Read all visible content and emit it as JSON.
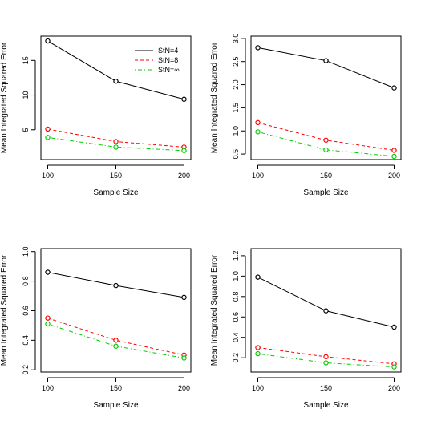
{
  "chart_data": [
    {
      "type": "line",
      "title": "",
      "xlabel": "Sample Size",
      "ylabel": "Mean Integrated Squared Error",
      "x": [
        100,
        150,
        200
      ],
      "xticks": [
        "100",
        "150",
        "200"
      ],
      "xlim": [
        95,
        205
      ],
      "ylim": [
        0.7,
        18.5
      ],
      "yticks": [
        5,
        10,
        15
      ],
      "ytick_labels": [
        "5",
        "10",
        "15"
      ],
      "legend": {
        "position": "top-right",
        "show": true
      },
      "series": [
        {
          "name": "StN=4",
          "values": [
            17.8,
            12.0,
            9.4
          ],
          "color": "#000000",
          "dash": "solid"
        },
        {
          "name": "StN=8",
          "values": [
            5.1,
            3.3,
            2.5
          ],
          "color": "#ff0000",
          "dash": "dashed"
        },
        {
          "name": "StN=∞",
          "values": [
            3.9,
            2.5,
            2.0
          ],
          "color": "#00cd00",
          "dash": "dotdash"
        }
      ]
    },
    {
      "type": "line",
      "title": "",
      "xlabel": "Sample Size",
      "ylabel": "Mean Integrated Squared Error",
      "x": [
        100,
        150,
        200
      ],
      "xticks": [
        "100",
        "150",
        "200"
      ],
      "xlim": [
        95,
        205
      ],
      "ylim": [
        0.38,
        3.05
      ],
      "yticks": [
        0.5,
        1.0,
        1.5,
        2.0,
        2.5,
        3.0
      ],
      "ytick_labels": [
        "0.5",
        "1.0",
        "1.5",
        "2.0",
        "2.5",
        "3.0"
      ],
      "legend": {
        "show": false
      },
      "series": [
        {
          "name": "StN=4",
          "values": [
            2.8,
            2.52,
            1.93
          ],
          "color": "#000000",
          "dash": "solid"
        },
        {
          "name": "StN=8",
          "values": [
            1.18,
            0.8,
            0.58
          ],
          "color": "#ff0000",
          "dash": "dashed"
        },
        {
          "name": "StN=∞",
          "values": [
            0.98,
            0.59,
            0.45
          ],
          "color": "#00cd00",
          "dash": "dotdash"
        }
      ]
    },
    {
      "type": "line",
      "title": "",
      "xlabel": "Sample Size",
      "ylabel": "Mean Integrated Squared Error",
      "x": [
        100,
        150,
        200
      ],
      "xticks": [
        "100",
        "150",
        "200"
      ],
      "xlim": [
        95,
        205
      ],
      "ylim": [
        0.185,
        1.02
      ],
      "yticks": [
        0.2,
        0.4,
        0.6,
        0.8,
        1.0
      ],
      "ytick_labels": [
        "0.2",
        "0.4",
        "0.6",
        "0.8",
        "1.0"
      ],
      "legend": {
        "show": false
      },
      "series": [
        {
          "name": "StN=4",
          "values": [
            0.86,
            0.77,
            0.69
          ],
          "color": "#000000",
          "dash": "solid"
        },
        {
          "name": "StN=8",
          "values": [
            0.55,
            0.4,
            0.3
          ],
          "color": "#ff0000",
          "dash": "dashed"
        },
        {
          "name": "StN=∞",
          "values": [
            0.51,
            0.36,
            0.28
          ],
          "color": "#00cd00",
          "dash": "dotdash"
        }
      ]
    },
    {
      "type": "line",
      "title": "",
      "xlabel": "Sample Size",
      "ylabel": "Mean Integrated Squared Error",
      "x": [
        100,
        150,
        200
      ],
      "xticks": [
        "100",
        "150",
        "200"
      ],
      "xlim": [
        95,
        205
      ],
      "ylim": [
        0.06,
        1.27
      ],
      "yticks": [
        0.2,
        0.4,
        0.6,
        0.8,
        1.0,
        1.2
      ],
      "ytick_labels": [
        "0.2",
        "0.4",
        "0.6",
        "0.8",
        "1.0",
        "1.2"
      ],
      "legend": {
        "show": false
      },
      "series": [
        {
          "name": "StN=4",
          "values": [
            0.99,
            0.66,
            0.5
          ],
          "color": "#000000",
          "dash": "solid"
        },
        {
          "name": "StN=8",
          "values": [
            0.3,
            0.21,
            0.14
          ],
          "color": "#ff0000",
          "dash": "dashed"
        },
        {
          "name": "StN=∞",
          "values": [
            0.24,
            0.15,
            0.11
          ],
          "color": "#00cd00",
          "dash": "dotdash"
        }
      ]
    }
  ]
}
